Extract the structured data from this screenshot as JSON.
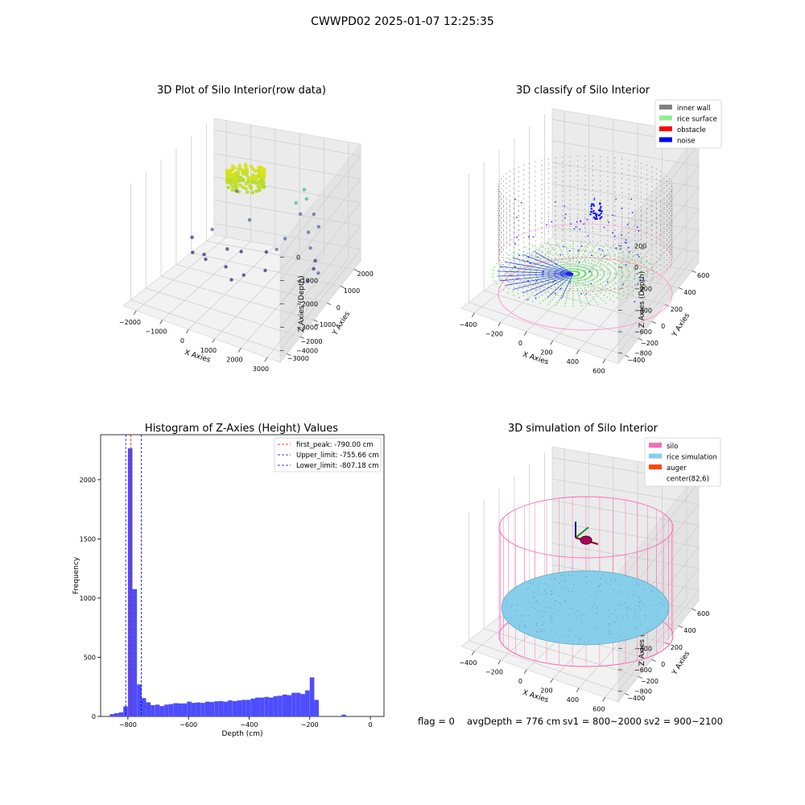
{
  "figure_title": "CWWPD02 2025-01-07 12:25:35",
  "status_bar": {
    "flag": "flag = 0",
    "avg_depth": "avgDepth = 776 cm",
    "sv1": "sv1 = 800~2000",
    "sv2": "sv2 = 900~2100"
  },
  "colors": {
    "hist_bar": "#4d4dff",
    "peak_line": "#ff0000",
    "limit_line": "#0000cc",
    "inner_wall": "#808080",
    "rice_surface": "#90ee90",
    "obstacle": "#ff0000",
    "noise": "#0000ff",
    "silo": "#ff69b4",
    "rice_simulation": "#87ceeb",
    "auger": "#ff4500"
  },
  "chart_data": [
    {
      "type": "scatter",
      "title": "3D Plot of Silo Interior(row data)",
      "xlabel": "X Axies",
      "ylabel": "Y Axies",
      "zlabel": "Z Axies (Depth)",
      "x_ticks": [
        "−2000",
        "−1000",
        "0",
        "1000",
        "2000",
        "3000"
      ],
      "y_ticks": [
        "−3000",
        "−2000",
        "−1000",
        "0",
        "1000",
        "2000"
      ],
      "z_ticks": [
        "−4000",
        "−3000",
        "−2000",
        "−1000",
        "0"
      ],
      "xlim": [
        -2500,
        3300
      ],
      "ylim": [
        -3300,
        2500
      ],
      "zlim": [
        -4400,
        200
      ],
      "points": [
        {
          "x": -2200,
          "y": 600,
          "z": -3500
        },
        {
          "x": -2000,
          "y": 300,
          "z": -3900
        },
        {
          "x": -1600,
          "y": 900,
          "z": -3200
        },
        {
          "x": -1500,
          "y": 200,
          "z": -3800
        },
        {
          "x": -1200,
          "y": -200,
          "z": -3700
        },
        {
          "x": -900,
          "y": 700,
          "z": -3700
        },
        {
          "x": -600,
          "y": 100,
          "z": -4000
        },
        {
          "x": -300,
          "y": 600,
          "z": -3600
        },
        {
          "x": -100,
          "y": -400,
          "z": -4100
        },
        {
          "x": 200,
          "y": -100,
          "z": -4000
        },
        {
          "x": 500,
          "y": 900,
          "z": -3600
        },
        {
          "x": 800,
          "y": 300,
          "z": -3900
        },
        {
          "x": 900,
          "y": 900,
          "z": -3400
        },
        {
          "x": 1000,
          "y": 1300,
          "z": -3200
        },
        {
          "x": 1800,
          "y": 1500,
          "z": -2900
        },
        {
          "x": 2100,
          "y": 1100,
          "z": -3200
        },
        {
          "x": 2400,
          "y": 900,
          "z": -3500
        },
        {
          "x": 2500,
          "y": 600,
          "z": -3600
        },
        {
          "x": 2900,
          "y": 200,
          "z": -3400
        },
        {
          "x": 2700,
          "y": -200,
          "z": -3500
        },
        {
          "x": 1200,
          "y": 1700,
          "z": -2000
        },
        {
          "x": 1500,
          "y": 1900,
          "z": -1900
        },
        {
          "x": 1300,
          "y": 2100,
          "z": -1700
        },
        {
          "x": 1600,
          "y": 1300,
          "z": -2100
        },
        {
          "x": 1900,
          "y": 1700,
          "z": -2300
        },
        {
          "x": 2200,
          "y": 1500,
          "z": -2600
        },
        {
          "x": -1300,
          "y": 2000,
          "z": -2200
        },
        {
          "x": -500,
          "y": 1500,
          "z": -2900
        }
      ]
    },
    {
      "type": "scatter",
      "title": "3D classify of Silo Interior",
      "xlabel": "X Axies",
      "ylabel": "Y Axies",
      "zlabel": "Z Axies (Depth)",
      "x_ticks": [
        "−400",
        "−200",
        "0",
        "200",
        "400",
        "600"
      ],
      "y_ticks": [
        "−400",
        "−200",
        "0",
        "200",
        "400",
        "600"
      ],
      "z_ticks": [
        "−800",
        "−600",
        "−400",
        "−200",
        "0",
        "200"
      ],
      "xlim": [
        -500,
        700
      ],
      "ylim": [
        -500,
        700
      ],
      "zlim": [
        -950,
        300
      ],
      "legend": [
        {
          "label": "inner wall",
          "color": "#808080"
        },
        {
          "label": "rice surface",
          "color": "#90ee90"
        },
        {
          "label": "obstacle",
          "color": "#ff0000"
        },
        {
          "label": "noise",
          "color": "#0000ff"
        }
      ],
      "cylinder": {
        "center_x": 82,
        "center_y": 6,
        "radius": 520,
        "z_bottom": -900,
        "z_top": 150
      }
    },
    {
      "type": "bar",
      "title": "Histogram of Z-Axies (Height) Values",
      "xlabel": "Depth (cm)",
      "ylabel": "Frequency",
      "xlim": [
        -890,
        45
      ],
      "ylim": [
        0,
        2380
      ],
      "x_ticks": [
        -800,
        -600,
        -400,
        -200,
        0
      ],
      "x_tick_labels": [
        "−800",
        "−600",
        "−400",
        "−200",
        "0"
      ],
      "y_ticks": [
        0,
        500,
        1000,
        1500,
        2000
      ],
      "y_tick_labels": [
        "0",
        "500",
        "1000",
        "1500",
        "2000"
      ],
      "bin_start": -860,
      "bin_width": 15,
      "values": [
        20,
        28,
        35,
        85,
        2265,
        1075,
        270,
        155,
        120,
        95,
        100,
        88,
        100,
        105,
        112,
        110,
        110,
        125,
        115,
        118,
        115,
        125,
        122,
        128,
        130,
        125,
        135,
        130,
        135,
        140,
        140,
        150,
        160,
        160,
        165,
        160,
        172,
        175,
        185,
        180,
        200,
        200,
        190,
        220,
        330,
        140,
        0,
        0,
        0,
        0,
        0,
        15
      ],
      "vlines": [
        {
          "label": "first_peak: -790.00 cm",
          "x": -790.0,
          "color": "#ff0000"
        },
        {
          "label": "Upper_limit: -755.66 cm",
          "x": -755.66,
          "color": "#0000cc"
        },
        {
          "label": "Lower_limit: -807.18 cm",
          "x": -807.18,
          "color": "#0000cc"
        }
      ]
    },
    {
      "type": "area",
      "title": "3D simulation of Silo Interior",
      "xlabel": "X Axies",
      "ylabel": "Y Axies",
      "zlabel": "Z Axies (Depth)",
      "x_ticks": [
        "−400",
        "−200",
        "0",
        "200",
        "400",
        "600"
      ],
      "y_ticks": [
        "−400",
        "−200",
        "0",
        "200",
        "400",
        "600"
      ],
      "z_ticks": [
        "−800",
        "−600",
        "−400",
        "−200",
        "0",
        "200"
      ],
      "xlim": [
        -500,
        700
      ],
      "ylim": [
        -500,
        700
      ],
      "zlim": [
        -950,
        300
      ],
      "legend": [
        {
          "label": "silo",
          "color": "#ff69b4"
        },
        {
          "label": "rice simulation",
          "color": "#87ceeb"
        },
        {
          "label": "auger",
          "color": "#ff4500"
        },
        {
          "label": "center(82,6)",
          "color": ""
        }
      ],
      "cylinder": {
        "center_x": 82,
        "center_y": 6,
        "radius": 520,
        "z_bottom": -900,
        "z_top": 150
      },
      "rice_surface_depth": -776
    }
  ]
}
